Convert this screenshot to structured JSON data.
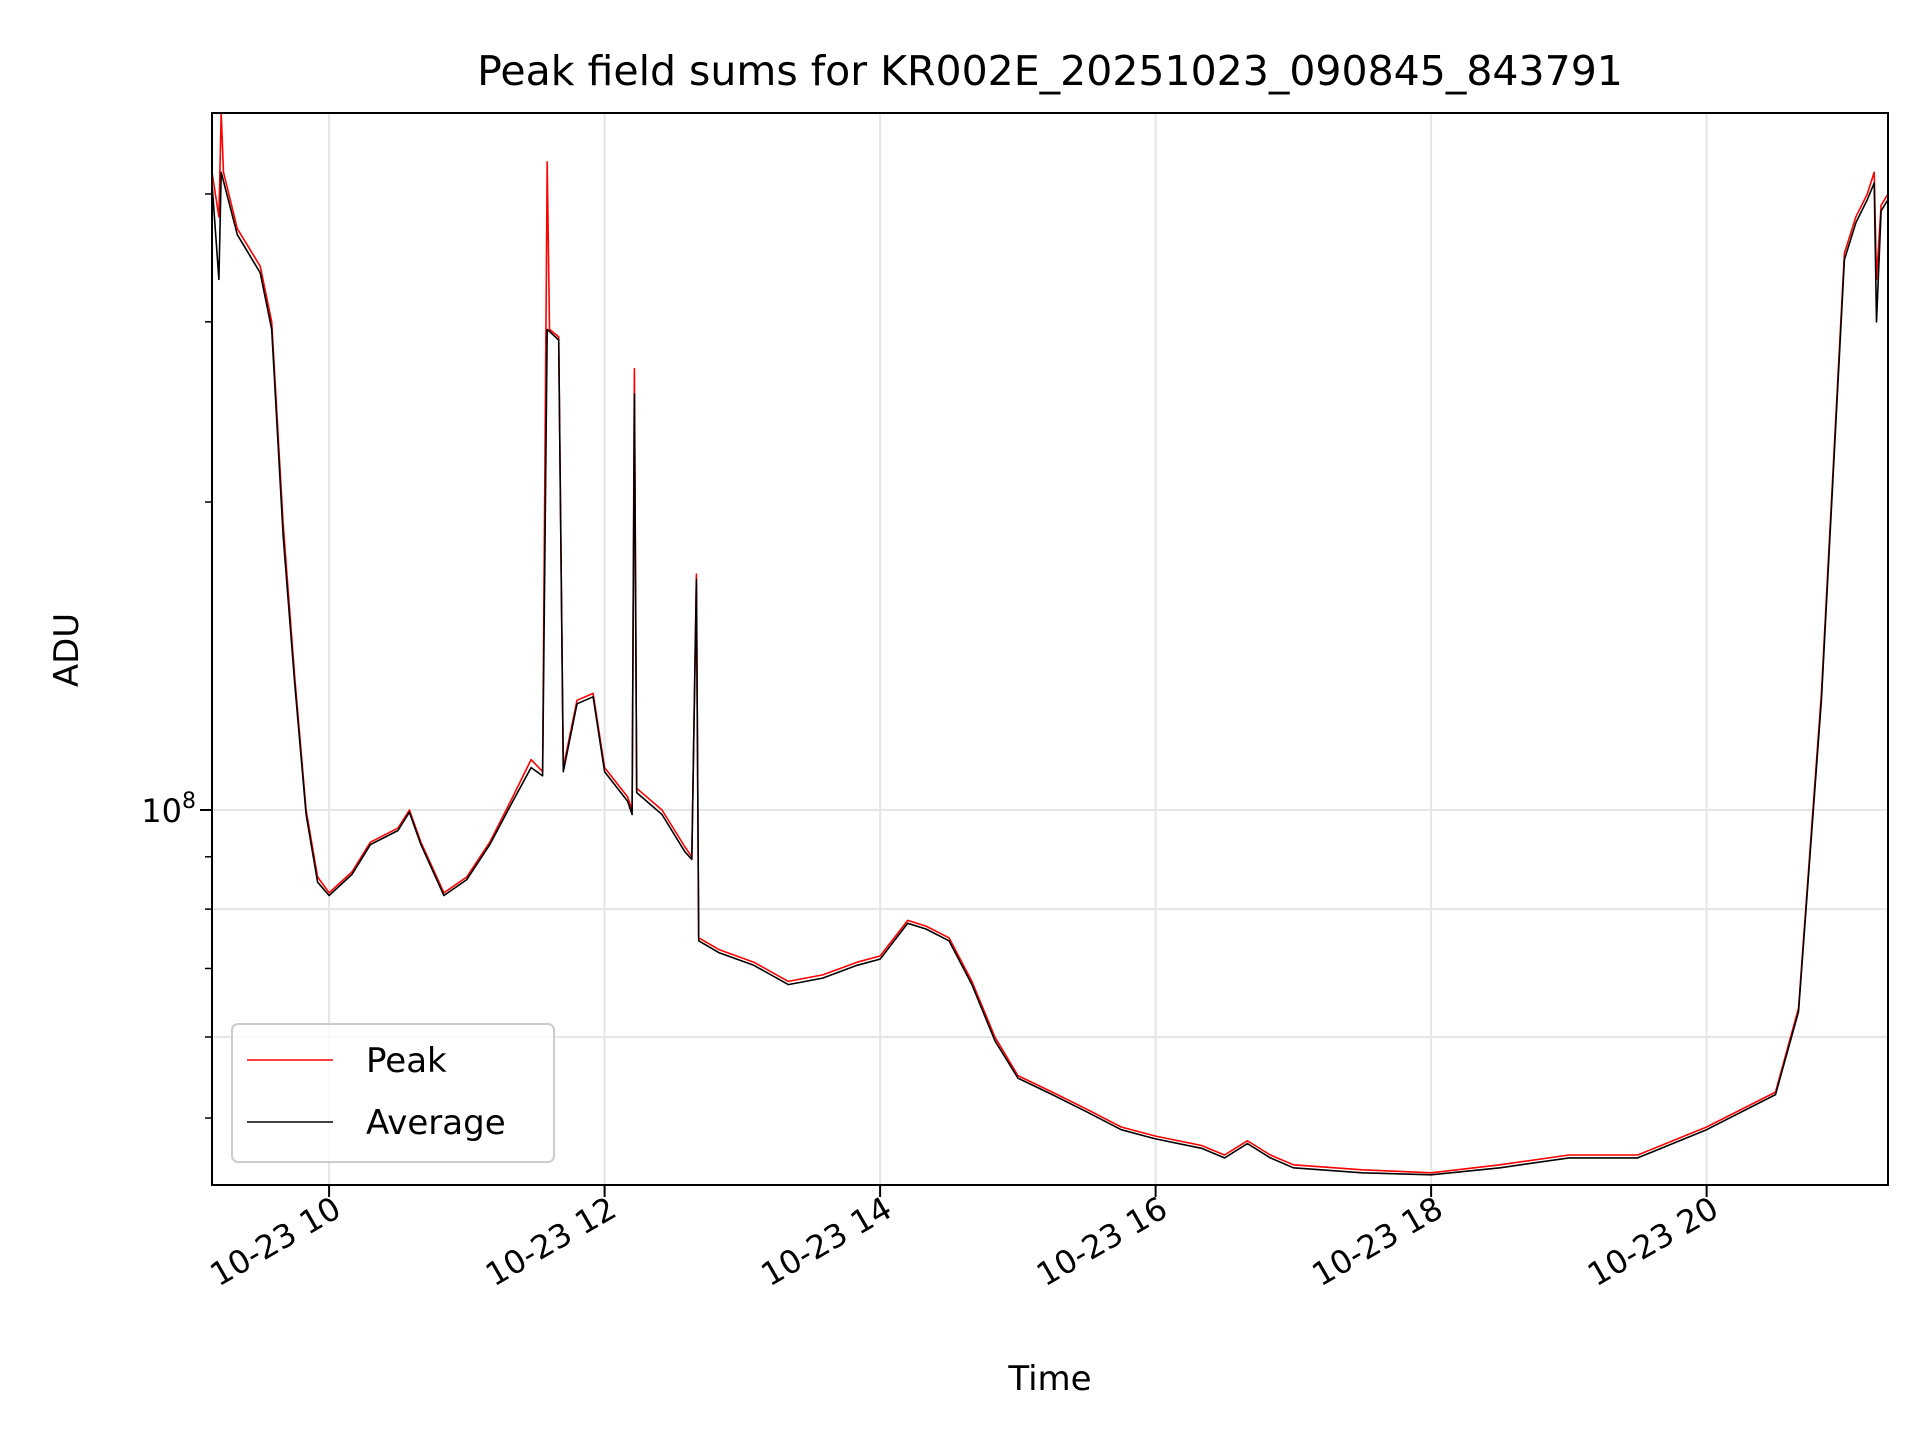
{
  "chart_data": {
    "type": "line",
    "title": "Peak field sums for KR002E_20251023_090845_843791",
    "xlabel": "Time",
    "ylabel": "ADU",
    "yscale": "log",
    "grid": true,
    "legend_position": "lower-left",
    "x_tick_labels": [
      "10-23 10",
      "10-23 12",
      "10-23 14",
      "10-23 16",
      "10-23 18",
      "10-23 20"
    ],
    "y_tick_label_base": "10",
    "y_tick_label_exp": "8",
    "xlim": [
      "2025-10-23 09:09",
      "2025-10-23 21:19"
    ],
    "ylim": [
      43000000,
      480000000
    ],
    "series": [
      {
        "name": "Peak",
        "color": "#ff0000",
        "points": [
          [
            "2025-10-23 09:09",
            420000000
          ],
          [
            "2025-10-23 09:12",
            380000000
          ],
          [
            "2025-10-23 09:13",
            480000000
          ],
          [
            "2025-10-23 09:14",
            420000000
          ],
          [
            "2025-10-23 09:20",
            370000000
          ],
          [
            "2025-10-23 09:30",
            340000000
          ],
          [
            "2025-10-23 09:35",
            300000000
          ],
          [
            "2025-10-23 09:40",
            190000000
          ],
          [
            "2025-10-23 09:45",
            135000000
          ],
          [
            "2025-10-23 09:50",
            100000000
          ],
          [
            "2025-10-23 09:55",
            86000000
          ],
          [
            "2025-10-23 10:00",
            83000000
          ],
          [
            "2025-10-23 10:10",
            87000000
          ],
          [
            "2025-10-23 10:18",
            93000000
          ],
          [
            "2025-10-23 10:30",
            96000000
          ],
          [
            "2025-10-23 10:35",
            100000000
          ],
          [
            "2025-10-23 10:40",
            93000000
          ],
          [
            "2025-10-23 10:50",
            83000000
          ],
          [
            "2025-10-23 11:00",
            86000000
          ],
          [
            "2025-10-23 11:10",
            93000000
          ],
          [
            "2025-10-23 11:20",
            103000000
          ],
          [
            "2025-10-23 11:28",
            112000000
          ],
          [
            "2025-10-23 11:33",
            109000000
          ],
          [
            "2025-10-23 11:35",
            430000000
          ],
          [
            "2025-10-23 11:36",
            295000000
          ],
          [
            "2025-10-23 11:40",
            290000000
          ],
          [
            "2025-10-23 11:42",
            110000000
          ],
          [
            "2025-10-23 11:48",
            128000000
          ],
          [
            "2025-10-23 11:55",
            130000000
          ],
          [
            "2025-10-23 12:00",
            110000000
          ],
          [
            "2025-10-23 12:10",
            103000000
          ],
          [
            "2025-10-23 12:12",
            100000000
          ],
          [
            "2025-10-23 12:13",
            270000000
          ],
          [
            "2025-10-23 12:14",
            105000000
          ],
          [
            "2025-10-23 12:25",
            100000000
          ],
          [
            "2025-10-23 12:35",
            92000000
          ],
          [
            "2025-10-23 12:38",
            90000000
          ],
          [
            "2025-10-23 12:40",
            170000000
          ],
          [
            "2025-10-23 12:41",
            75000000
          ],
          [
            "2025-10-23 12:50",
            73000000
          ],
          [
            "2025-10-23 13:05",
            71000000
          ],
          [
            "2025-10-23 13:20",
            68000000
          ],
          [
            "2025-10-23 13:35",
            69000000
          ],
          [
            "2025-10-23 13:50",
            71000000
          ],
          [
            "2025-10-23 14:00",
            72000000
          ],
          [
            "2025-10-23 14:12",
            78000000
          ],
          [
            "2025-10-23 14:20",
            77000000
          ],
          [
            "2025-10-23 14:30",
            75000000
          ],
          [
            "2025-10-23 14:40",
            68000000
          ],
          [
            "2025-10-23 14:50",
            60000000
          ],
          [
            "2025-10-23 15:00",
            55000000
          ],
          [
            "2025-10-23 15:15",
            53000000
          ],
          [
            "2025-10-23 15:30",
            51000000
          ],
          [
            "2025-10-23 15:45",
            49000000
          ],
          [
            "2025-10-23 16:00",
            48000000
          ],
          [
            "2025-10-23 16:20",
            47000000
          ],
          [
            "2025-10-23 16:30",
            46000000
          ],
          [
            "2025-10-23 16:40",
            47500000
          ],
          [
            "2025-10-23 16:50",
            46000000
          ],
          [
            "2025-10-23 17:00",
            45000000
          ],
          [
            "2025-10-23 17:30",
            44500000
          ],
          [
            "2025-10-23 18:00",
            44200000
          ],
          [
            "2025-10-23 18:30",
            45000000
          ],
          [
            "2025-10-23 19:00",
            46000000
          ],
          [
            "2025-10-23 19:30",
            46000000
          ],
          [
            "2025-10-23 20:00",
            49000000
          ],
          [
            "2025-10-23 20:30",
            53000000
          ],
          [
            "2025-10-23 20:40",
            64000000
          ],
          [
            "2025-10-23 20:50",
            130000000
          ],
          [
            "2025-10-23 21:00",
            350000000
          ],
          [
            "2025-10-23 21:05",
            380000000
          ],
          [
            "2025-10-23 21:10",
            400000000
          ],
          [
            "2025-10-23 21:13",
            420000000
          ],
          [
            "2025-10-23 21:14",
            330000000
          ],
          [
            "2025-10-23 21:16",
            390000000
          ],
          [
            "2025-10-23 21:19",
            400000000
          ]
        ]
      },
      {
        "name": "Average",
        "color": "#000000",
        "points": [
          [
            "2025-10-23 09:09",
            410000000
          ],
          [
            "2025-10-23 09:12",
            330000000
          ],
          [
            "2025-10-23 09:13",
            420000000
          ],
          [
            "2025-10-23 09:20",
            365000000
          ],
          [
            "2025-10-23 09:30",
            335000000
          ],
          [
            "2025-10-23 09:35",
            295000000
          ],
          [
            "2025-10-23 09:40",
            185000000
          ],
          [
            "2025-10-23 09:45",
            133000000
          ],
          [
            "2025-10-23 09:50",
            99000000
          ],
          [
            "2025-10-23 09:55",
            85000000
          ],
          [
            "2025-10-23 10:00",
            82500000
          ],
          [
            "2025-10-23 10:10",
            86500000
          ],
          [
            "2025-10-23 10:18",
            92500000
          ],
          [
            "2025-10-23 10:30",
            95500000
          ],
          [
            "2025-10-23 10:35",
            99500000
          ],
          [
            "2025-10-23 10:40",
            92500000
          ],
          [
            "2025-10-23 10:50",
            82500000
          ],
          [
            "2025-10-23 11:00",
            85500000
          ],
          [
            "2025-10-23 11:10",
            92500000
          ],
          [
            "2025-10-23 11:20",
            102000000
          ],
          [
            "2025-10-23 11:28",
            110000000
          ],
          [
            "2025-10-23 11:33",
            108000000
          ],
          [
            "2025-10-23 11:35",
            295000000
          ],
          [
            "2025-10-23 11:40",
            288000000
          ],
          [
            "2025-10-23 11:42",
            109000000
          ],
          [
            "2025-10-23 11:48",
            127000000
          ],
          [
            "2025-10-23 11:55",
            129000000
          ],
          [
            "2025-10-23 12:00",
            109000000
          ],
          [
            "2025-10-23 12:10",
            102000000
          ],
          [
            "2025-10-23 12:12",
            99000000
          ],
          [
            "2025-10-23 12:13",
            255000000
          ],
          [
            "2025-10-23 12:14",
            104000000
          ],
          [
            "2025-10-23 12:25",
            99000000
          ],
          [
            "2025-10-23 12:35",
            91000000
          ],
          [
            "2025-10-23 12:38",
            89500000
          ],
          [
            "2025-10-23 12:40",
            168000000
          ],
          [
            "2025-10-23 12:41",
            74500000
          ],
          [
            "2025-10-23 12:50",
            72500000
          ],
          [
            "2025-10-23 13:05",
            70500000
          ],
          [
            "2025-10-23 13:20",
            67500000
          ],
          [
            "2025-10-23 13:35",
            68500000
          ],
          [
            "2025-10-23 13:50",
            70500000
          ],
          [
            "2025-10-23 14:00",
            71500000
          ],
          [
            "2025-10-23 14:12",
            77500000
          ],
          [
            "2025-10-23 14:20",
            76500000
          ],
          [
            "2025-10-23 14:30",
            74500000
          ],
          [
            "2025-10-23 14:40",
            67500000
          ],
          [
            "2025-10-23 14:50",
            59500000
          ],
          [
            "2025-10-23 15:00",
            54700000
          ],
          [
            "2025-10-23 15:15",
            52700000
          ],
          [
            "2025-10-23 15:30",
            50700000
          ],
          [
            "2025-10-23 15:45",
            48700000
          ],
          [
            "2025-10-23 16:00",
            47700000
          ],
          [
            "2025-10-23 16:20",
            46700000
          ],
          [
            "2025-10-23 16:30",
            45700000
          ],
          [
            "2025-10-23 16:40",
            47200000
          ],
          [
            "2025-10-23 16:50",
            45700000
          ],
          [
            "2025-10-23 17:00",
            44700000
          ],
          [
            "2025-10-23 17:30",
            44200000
          ],
          [
            "2025-10-23 18:00",
            44000000
          ],
          [
            "2025-10-23 18:30",
            44700000
          ],
          [
            "2025-10-23 19:00",
            45700000
          ],
          [
            "2025-10-23 19:30",
            45700000
          ],
          [
            "2025-10-23 20:00",
            48700000
          ],
          [
            "2025-10-23 20:30",
            52700000
          ],
          [
            "2025-10-23 20:40",
            63500000
          ],
          [
            "2025-10-23 20:50",
            128000000
          ],
          [
            "2025-10-23 21:00",
            345000000
          ],
          [
            "2025-10-23 21:05",
            375000000
          ],
          [
            "2025-10-23 21:10",
            395000000
          ],
          [
            "2025-10-23 21:13",
            410000000
          ],
          [
            "2025-10-23 21:14",
            300000000
          ],
          [
            "2025-10-23 21:16",
            385000000
          ],
          [
            "2025-10-23 21:19",
            395000000
          ]
        ]
      }
    ]
  }
}
